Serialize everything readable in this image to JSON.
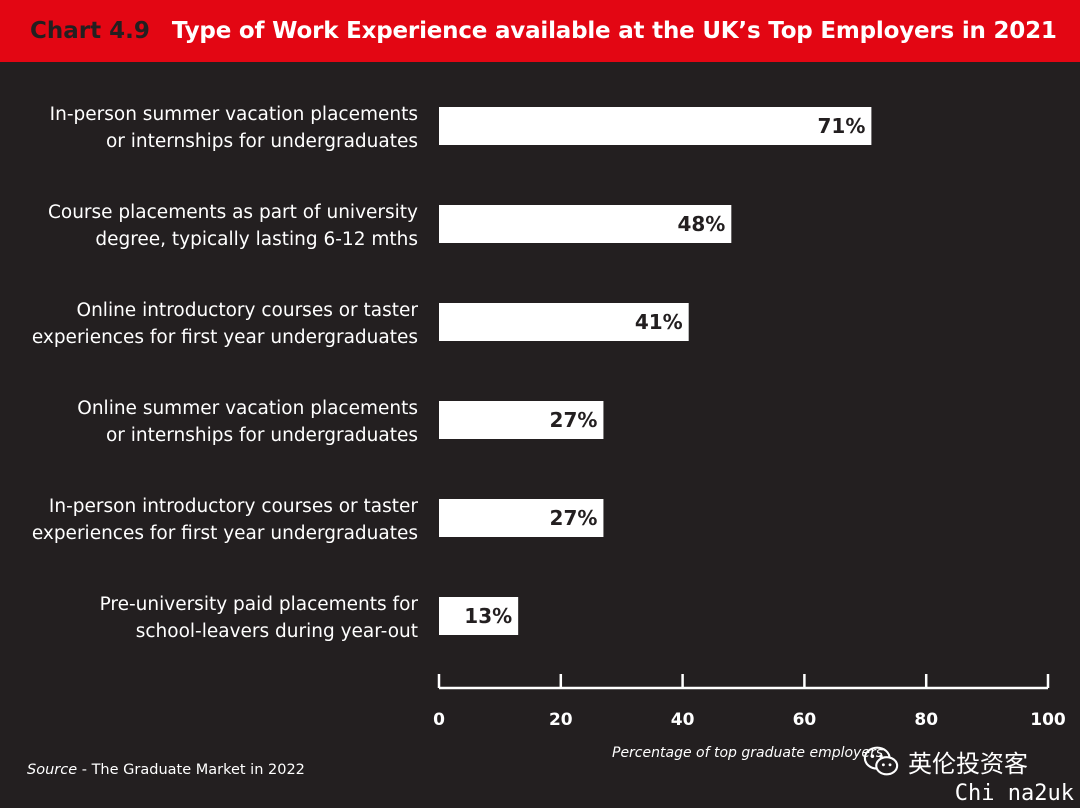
{
  "header": {
    "chart_number": "Chart 4.9",
    "title": "Type of Work Experience available at the UK’s Top Employers in 2021"
  },
  "chart_data": {
    "type": "bar",
    "orientation": "horizontal",
    "categories": [
      [
        "In-person summer vacation placements",
        "or internships for undergraduates"
      ],
      [
        "Course placements as part of university",
        "degree, typically lasting 6-12 mths"
      ],
      [
        "Online introductory courses or taster",
        "experiences for first year undergraduates"
      ],
      [
        "Online summer vacation placements",
        "or internships for undergraduates"
      ],
      [
        "In-person introductory courses or taster",
        "experiences for first year undergraduates"
      ],
      [
        "Pre-university paid placements for",
        "school-leavers during year-out"
      ]
    ],
    "values": [
      71,
      48,
      41,
      27,
      27,
      13
    ],
    "value_labels": [
      "71%",
      "48%",
      "41%",
      "27%",
      "27%",
      "13%"
    ],
    "xlim": [
      0,
      100
    ],
    "xticks": [
      0,
      20,
      40,
      60,
      80,
      100
    ],
    "xlabel": "Percentage of top graduate employers",
    "grid": false,
    "bar_color": "#ffffff",
    "background_color": "#231f20"
  },
  "source": {
    "prefix": "Source",
    "text": " - The Graduate Market in 2022"
  },
  "watermark": {
    "icon": "wechat-icon",
    "text": "英伦投资客",
    "sub": "Chi na2uk"
  },
  "colors": {
    "header_bg": "#e30613",
    "background": "#231f20",
    "bar": "#ffffff"
  }
}
